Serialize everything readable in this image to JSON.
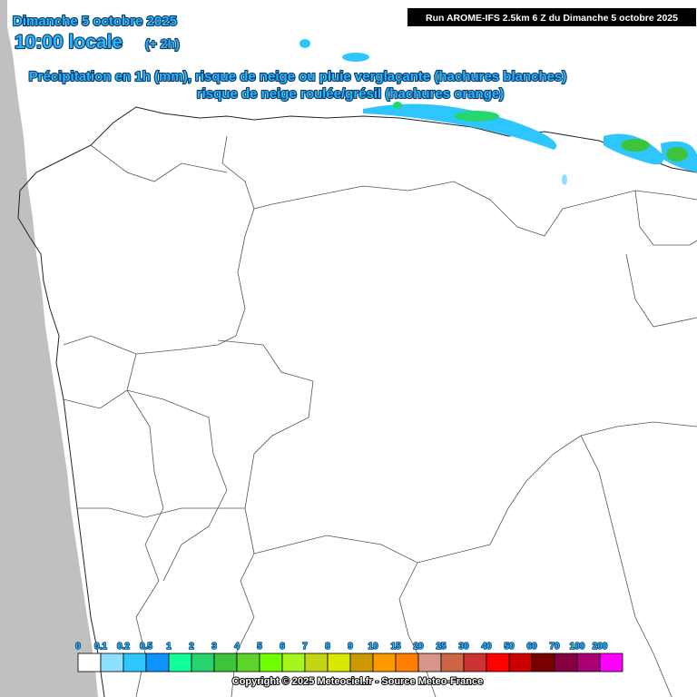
{
  "header": {
    "date": "Dimanche 5 octobre 2025",
    "time": "10:00 locale",
    "offset": "(+ 2h)",
    "run": "Run AROME-IFS 2.5km 6 Z du Dimanche 5 octobre 2025",
    "subtitle_1": "Précipitation en 1h (mm), risque de neige ou pluie verglaçante (hachures blanches)",
    "subtitle_2": "risque de neige roulée/grésil (hachures orange)"
  },
  "legend": {
    "labels": [
      "0",
      "0.1",
      "0.2",
      "0.5",
      "1",
      "2",
      "3",
      "4",
      "5",
      "6",
      "7",
      "8",
      "9",
      "10",
      "15",
      "20",
      "25",
      "30",
      "40",
      "50",
      "60",
      "70",
      "100",
      "200"
    ],
    "colors": [
      "#ffffff",
      "#8de0ff",
      "#2ec6ff",
      "#0f93ff",
      "#12ff9a",
      "#29d46e",
      "#3ec43c",
      "#5dd52b",
      "#70ff00",
      "#a5f71b",
      "#c4d611",
      "#d8e800",
      "#cc9900",
      "#ff9900",
      "#ff7f00",
      "#d8968a",
      "#cc6644",
      "#cc3333",
      "#ff0000",
      "#cc0000",
      "#770000",
      "#880044",
      "#aa0077",
      "#ff00ff"
    ]
  },
  "footer": {
    "copyright": "Copyright © 2025 Meteociel.fr - Source Meteo-France"
  }
}
